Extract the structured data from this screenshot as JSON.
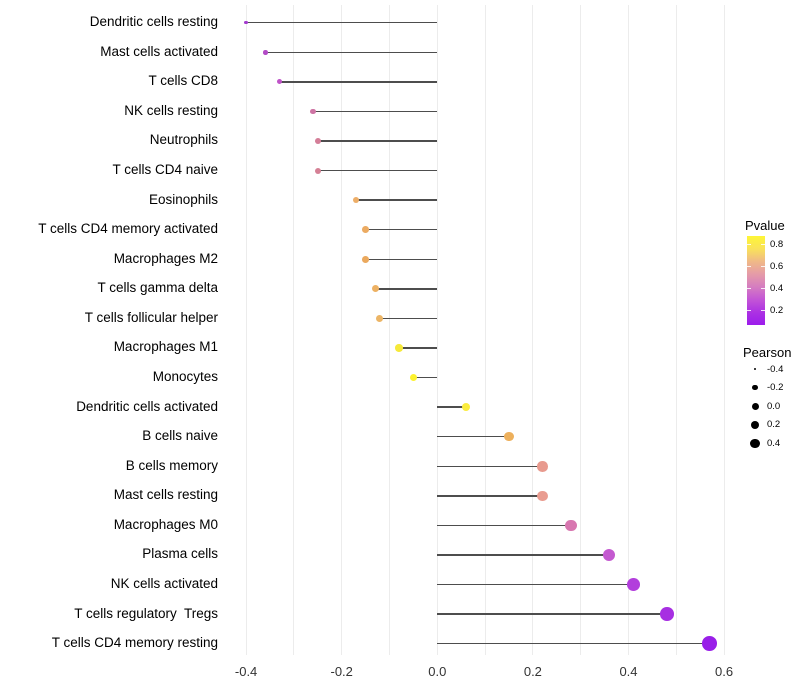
{
  "chart_data": {
    "type": "lollipop",
    "title": "",
    "xlabel": "",
    "ylabel": "",
    "xlim": [
      -0.42,
      0.62
    ],
    "x_tick_labels": [
      "-0.4",
      "-0.2",
      "0.0",
      "0.2",
      "0.4",
      "0.6"
    ],
    "x_tick_values": [
      -0.4,
      -0.2,
      0.0,
      0.2,
      0.4,
      0.6
    ],
    "x_gridline_values": [
      -0.4,
      -0.3,
      -0.2,
      -0.1,
      0.0,
      0.1,
      0.2,
      0.3,
      0.4,
      0.5,
      0.6
    ],
    "grid": "vertical-only",
    "stem_color": "#4d4d4d",
    "categories": [
      "Dendritic cells resting",
      "Mast cells activated",
      "T cells CD8",
      "NK cells resting",
      "Neutrophils",
      "T cells CD4 naive",
      "Eosinophils",
      "T cells CD4 memory activated",
      "Macrophages M2",
      "T cells gamma delta",
      "T cells follicular helper",
      "Macrophages M1",
      "Monocytes",
      "Dendritic cells activated",
      "B cells naive",
      "B cells memory",
      "Mast cells resting",
      "Macrophages M0",
      "Plasma cells",
      "NK cells activated",
      "T cells regulatory  Tregs",
      "T cells CD4 memory resting"
    ],
    "series": [
      {
        "name": "Pearson correlation",
        "values": [
          -0.4,
          -0.36,
          -0.33,
          -0.26,
          -0.25,
          -0.25,
          -0.17,
          -0.15,
          -0.15,
          -0.13,
          -0.12,
          -0.08,
          -0.05,
          0.06,
          0.15,
          0.22,
          0.22,
          0.28,
          0.36,
          0.41,
          0.48,
          0.57
        ]
      }
    ],
    "point_colors": [
      "#A33BCE",
      "#B24AC6",
      "#BF53C8",
      "#CE74A4",
      "#D47E98",
      "#D58095",
      "#EDAE68",
      "#ECAB62",
      "#EBA95E",
      "#EDB163",
      "#ECB566",
      "#F6E93A",
      "#FDF22E",
      "#FBEC3E",
      "#EDB05C",
      "#E89A8E",
      "#E99C90",
      "#D877B0",
      "#C45AD0",
      "#B23EDC",
      "#A72FE2",
      "#991FE8"
    ],
    "point_radius_px": [
      1.8,
      2.3,
      2.5,
      2.9,
      2.9,
      3.0,
      3.3,
      3.4,
      3.4,
      3.5,
      3.5,
      3.7,
      3.8,
      4.1,
      4.6,
      5.3,
      5.3,
      5.7,
      6.1,
      6.4,
      6.8,
      7.4
    ],
    "legends": {
      "pvalue": {
        "title": "Pvalue",
        "tick_labels": [
          "0.8",
          "0.6",
          "0.4",
          "0.2"
        ],
        "gradient_top_to_bottom": [
          "#FEF636",
          "#F9E25A",
          "#F0B987",
          "#E59BA8",
          "#D57DC0",
          "#C355D6",
          "#AC32E3",
          "#9C1CEC"
        ],
        "legend_position": "right"
      },
      "pearson": {
        "title": "Pearson",
        "entries": [
          {
            "label": "-0.4",
            "radius_px": 1.4
          },
          {
            "label": "-0.2",
            "radius_px": 2.8
          },
          {
            "label": "0.0",
            "radius_px": 3.5
          },
          {
            "label": "0.2",
            "radius_px": 4.2
          },
          {
            "label": "0.4",
            "radius_px": 4.9
          }
        ],
        "dot_color": "#000000"
      }
    }
  }
}
